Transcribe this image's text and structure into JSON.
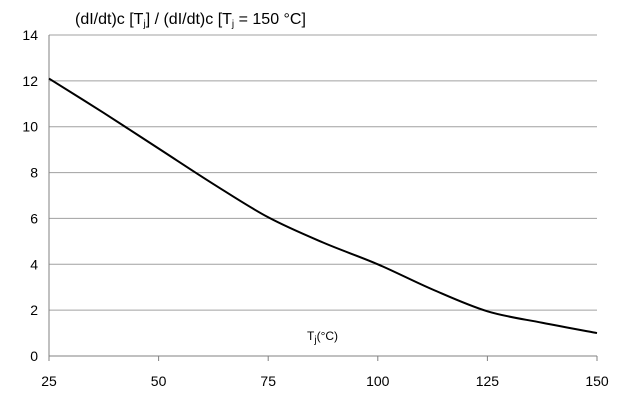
{
  "chart_data": {
    "type": "line",
    "title_parts": [
      "(dI/dt)c [T",
      "j",
      "] / (dI/dt)c [T",
      "j",
      " = 150 °C]"
    ],
    "xlabel_parts": [
      "T",
      "j",
      "(°C)"
    ],
    "ylabel": "",
    "xlim": [
      25,
      150
    ],
    "ylim": [
      0,
      14
    ],
    "x_ticks": [
      25,
      50,
      75,
      100,
      125,
      150
    ],
    "y_ticks": [
      0,
      2,
      4,
      6,
      8,
      10,
      12,
      14
    ],
    "grid": "horizontal",
    "line_color": "#000000",
    "grid_color": "#a0a0a0",
    "series": [
      {
        "x": [
          25,
          37.5,
          50,
          62.5,
          75,
          87.5,
          100,
          112.5,
          125,
          137.5,
          150
        ],
        "values": [
          12.1,
          10.6,
          9.05,
          7.5,
          6.05,
          4.95,
          4.0,
          2.9,
          1.95,
          1.45,
          1.0
        ]
      }
    ]
  }
}
